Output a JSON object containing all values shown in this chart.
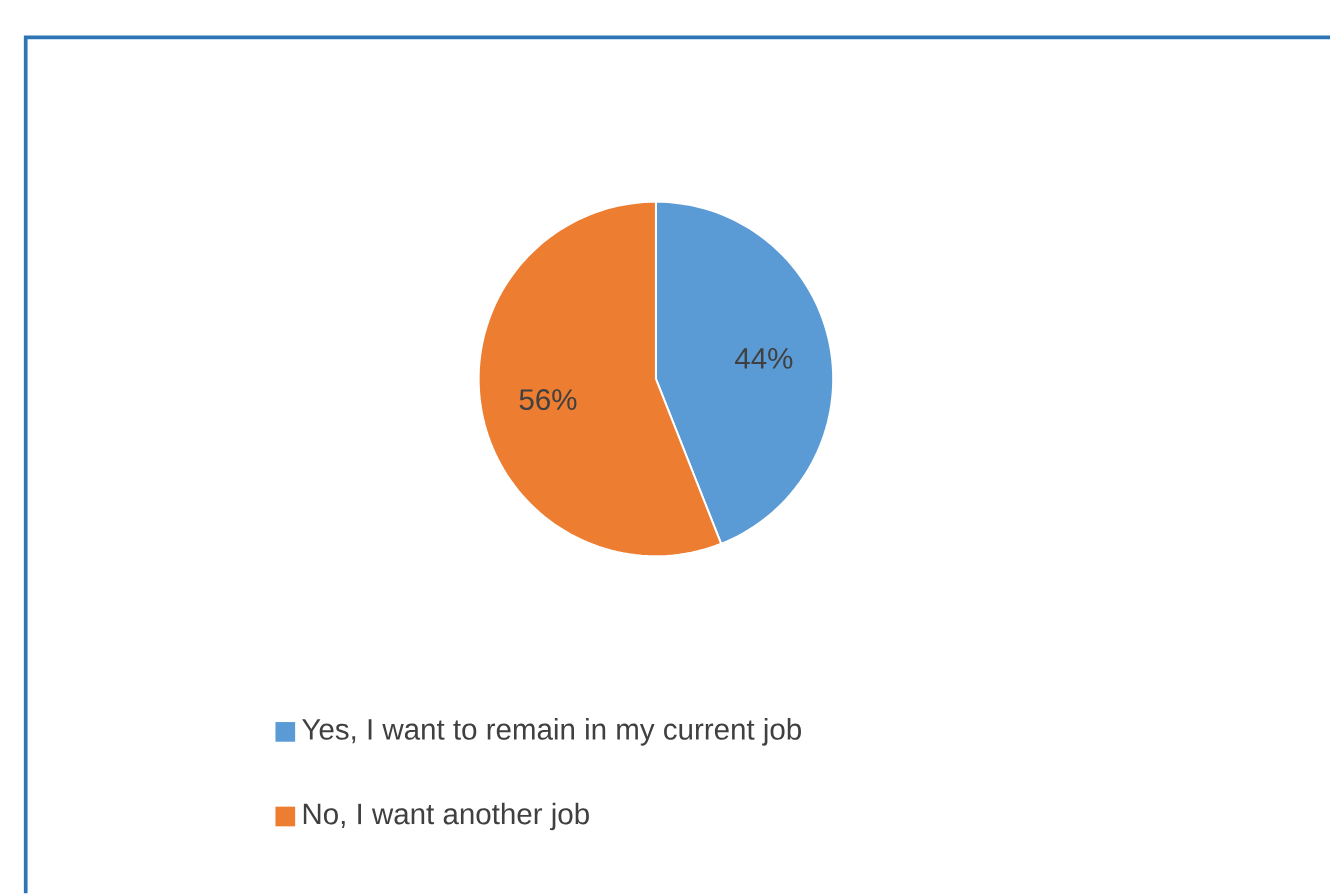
{
  "chart_data": {
    "type": "pie",
    "categories": [
      "Yes, I want to remain in my current job",
      "No, I want another job"
    ],
    "values": [
      44,
      56
    ],
    "colors": [
      "#5b9bd5",
      "#ed7d31"
    ],
    "value_labels": [
      "44%",
      "56%"
    ],
    "legend": "bottom"
  }
}
